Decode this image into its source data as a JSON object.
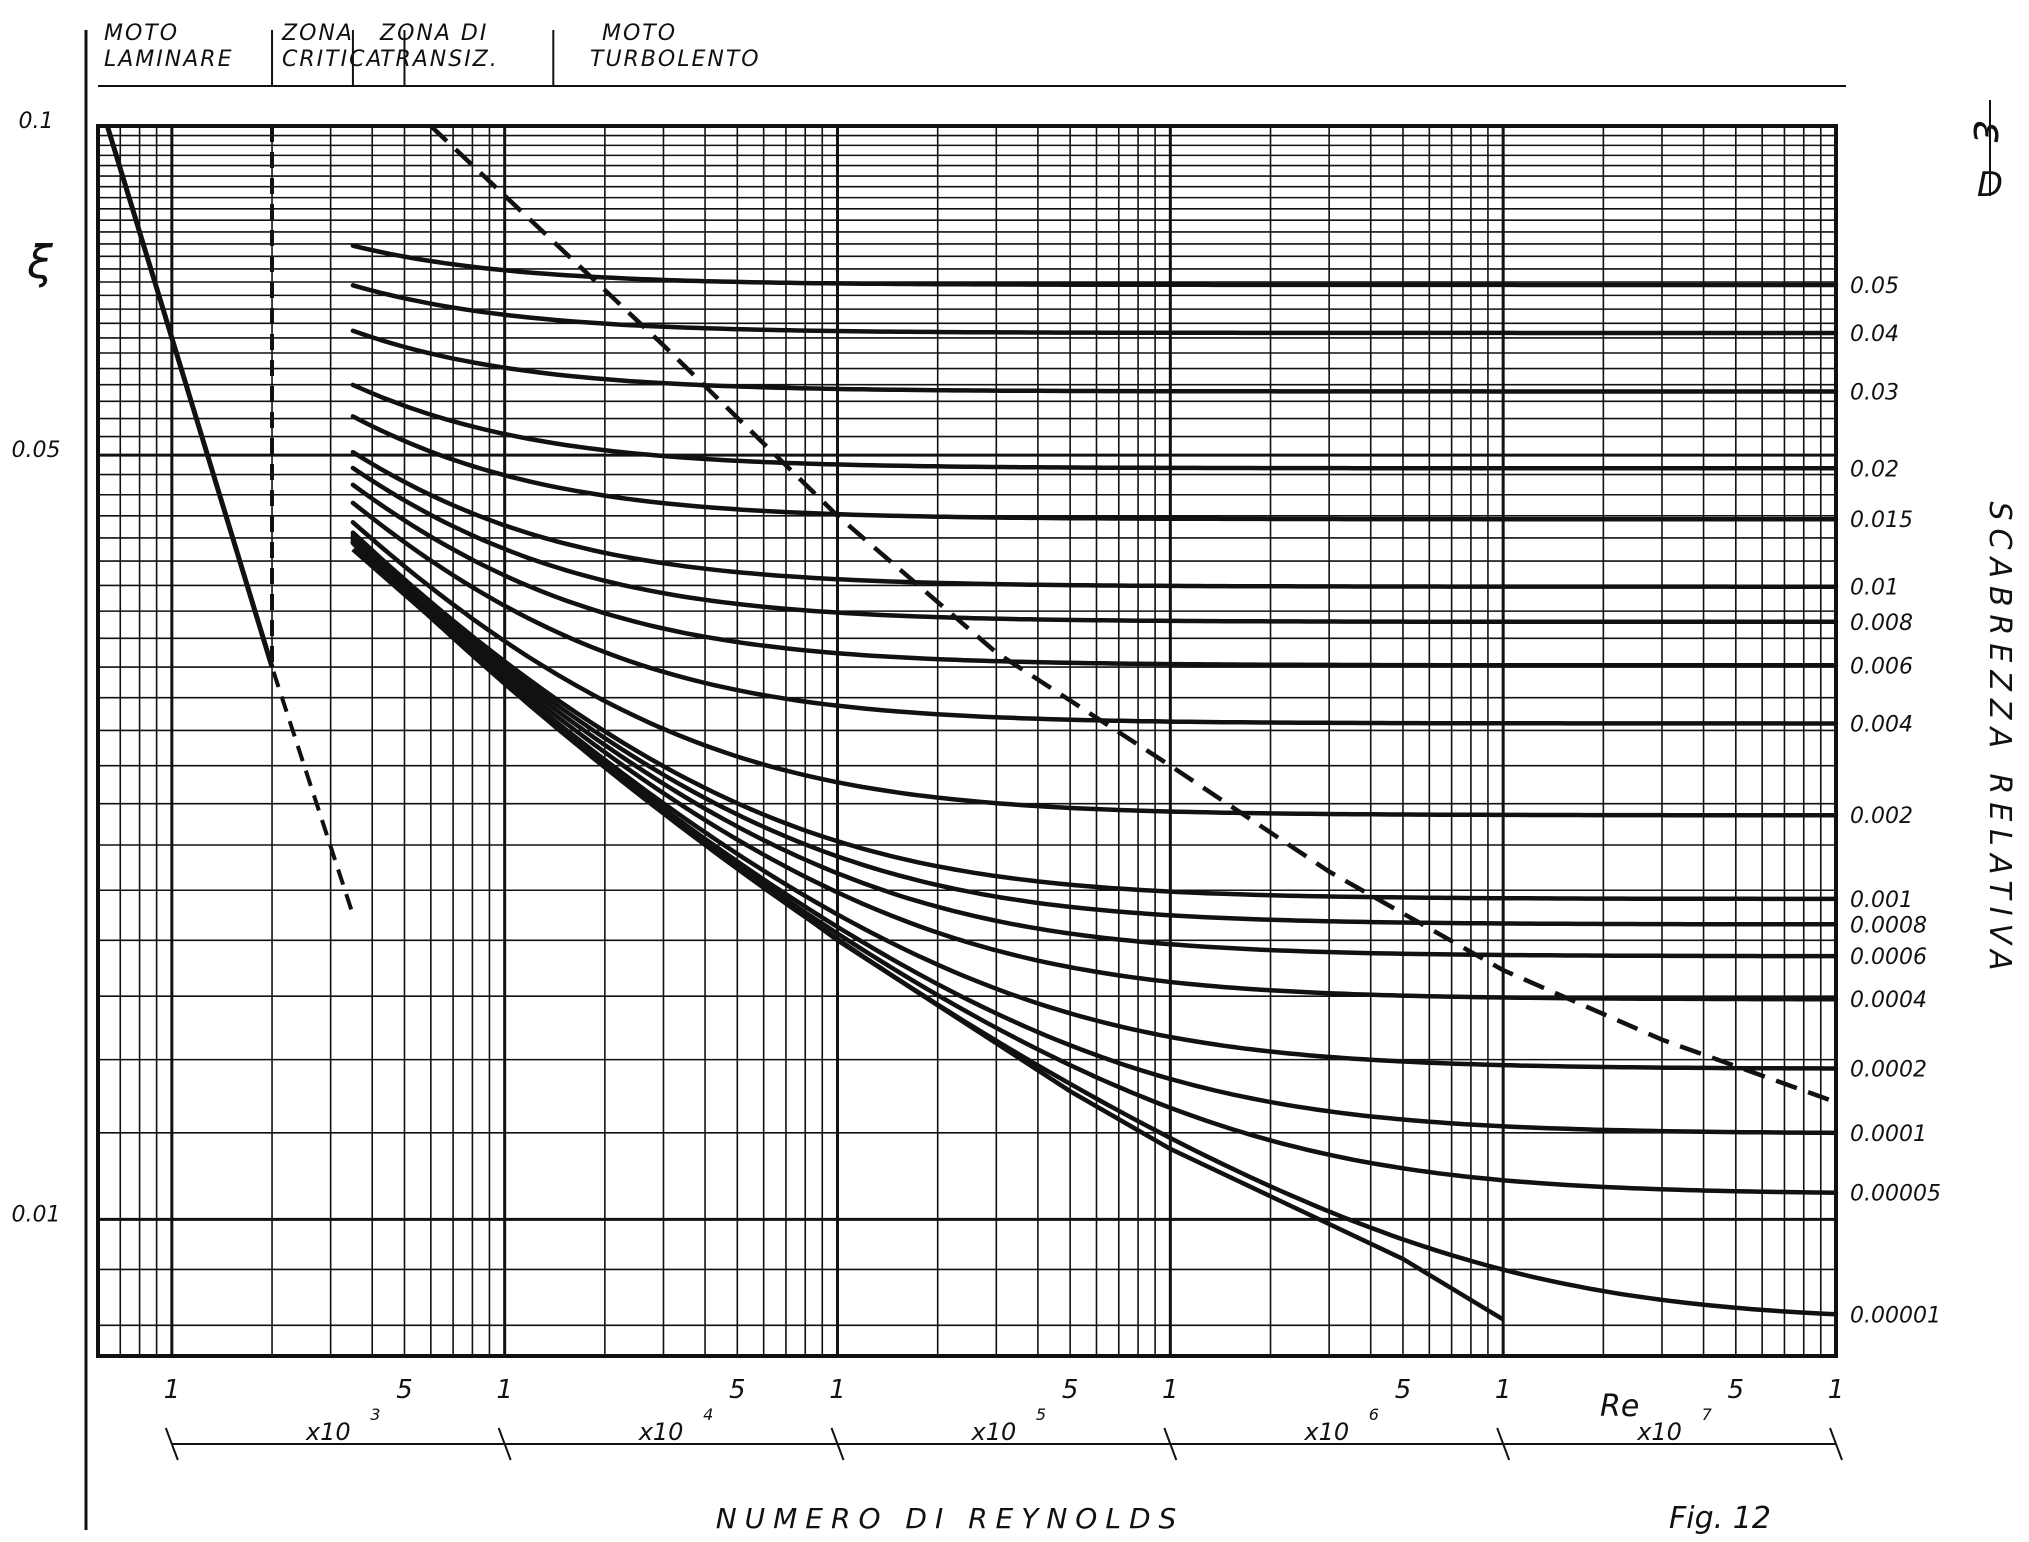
{
  "chart_data": {
    "type": "line",
    "title": "",
    "xlabel": "NUMERO DI REYNOLDS",
    "ylabel": "ξ",
    "right_label_fraction": "ε/D",
    "right_axis_title": "SCABREZZA RELATIVA",
    "figure_label": "Fig. 12",
    "re_label": "Re",
    "x_scale": "log",
    "y_scale": "log",
    "xlim": [
      600,
      100000000
    ],
    "ylim": [
      0.0075,
      0.1
    ],
    "grid": true,
    "regimes": [
      {
        "line1": "MOTO",
        "line2": "LAMINARE"
      },
      {
        "line1": "ZONA",
        "line2": "CRITICA"
      },
      {
        "line1": "ZONA DI",
        "line2": "TRANSIZ."
      },
      {
        "line1": "MOTO",
        "line2": "TURBOLENTO"
      }
    ],
    "y_tick_labels": [
      {
        "value": 0.1,
        "label": "0.1"
      },
      {
        "value": 0.05,
        "label": "0.05"
      },
      {
        "value": 0.01,
        "label": "0.01"
      }
    ],
    "x_tick_labels": [
      {
        "value": 1000,
        "label": "1"
      },
      {
        "value": 5000,
        "label": "5"
      },
      {
        "value": 10000,
        "label": "1"
      },
      {
        "value": 50000,
        "label": "5"
      },
      {
        "value": 100000,
        "label": "1"
      },
      {
        "value": 500000,
        "label": "5"
      },
      {
        "value": 1000000,
        "label": "1"
      },
      {
        "value": 5000000,
        "label": "5"
      },
      {
        "value": 10000000,
        "label": "1"
      },
      {
        "value": 50000000,
        "label": "5"
      },
      {
        "value": 100000000,
        "label": "1"
      }
    ],
    "decades": [
      {
        "from": 1000,
        "to": 10000,
        "label": "x10",
        "exp": "3"
      },
      {
        "from": 10000,
        "to": 100000,
        "label": "x10",
        "exp": "4"
      },
      {
        "from": 100000,
        "to": 1000000,
        "label": "x10",
        "exp": "5"
      },
      {
        "from": 1000000,
        "to": 10000000,
        "label": "x10",
        "exp": "6"
      },
      {
        "from": 10000000,
        "to": 100000000,
        "label": "x10",
        "exp": "7"
      }
    ],
    "roughness_values": [
      "0.05",
      "0.04",
      "0.03",
      "0.02",
      "0.015",
      "0.01",
      "0.008",
      "0.006",
      "0.004",
      "0.002",
      "0.001",
      "0.0008",
      "0.0006",
      "0.0004",
      "0.0002",
      "0.0001",
      "0.00005",
      "0.00001"
    ],
    "laminar": {
      "x": [
        640,
        2000
      ],
      "y": [
        0.1,
        0.032
      ]
    },
    "critical_zone": {
      "x": [
        2000,
        2000,
        3500
      ],
      "y": [
        0.1,
        0.032,
        0.019
      ]
    },
    "complete_turbulence_boundary": {
      "x": [
        6000,
        30000,
        100000,
        300000,
        1000000,
        3000000,
        10000000,
        30000000,
        100000000
      ],
      "y": [
        0.1,
        0.063,
        0.044,
        0.033,
        0.026,
        0.0208,
        0.0169,
        0.0146,
        0.0128
      ]
    },
    "smooth_pipe": {
      "x": [
        3500,
        10000,
        50000,
        100000,
        500000,
        1000000,
        5000000,
        10000000
      ],
      "y": [
        0.041,
        0.031,
        0.021,
        0.018,
        0.0131,
        0.0116,
        0.0092,
        0.0081
      ]
    }
  }
}
